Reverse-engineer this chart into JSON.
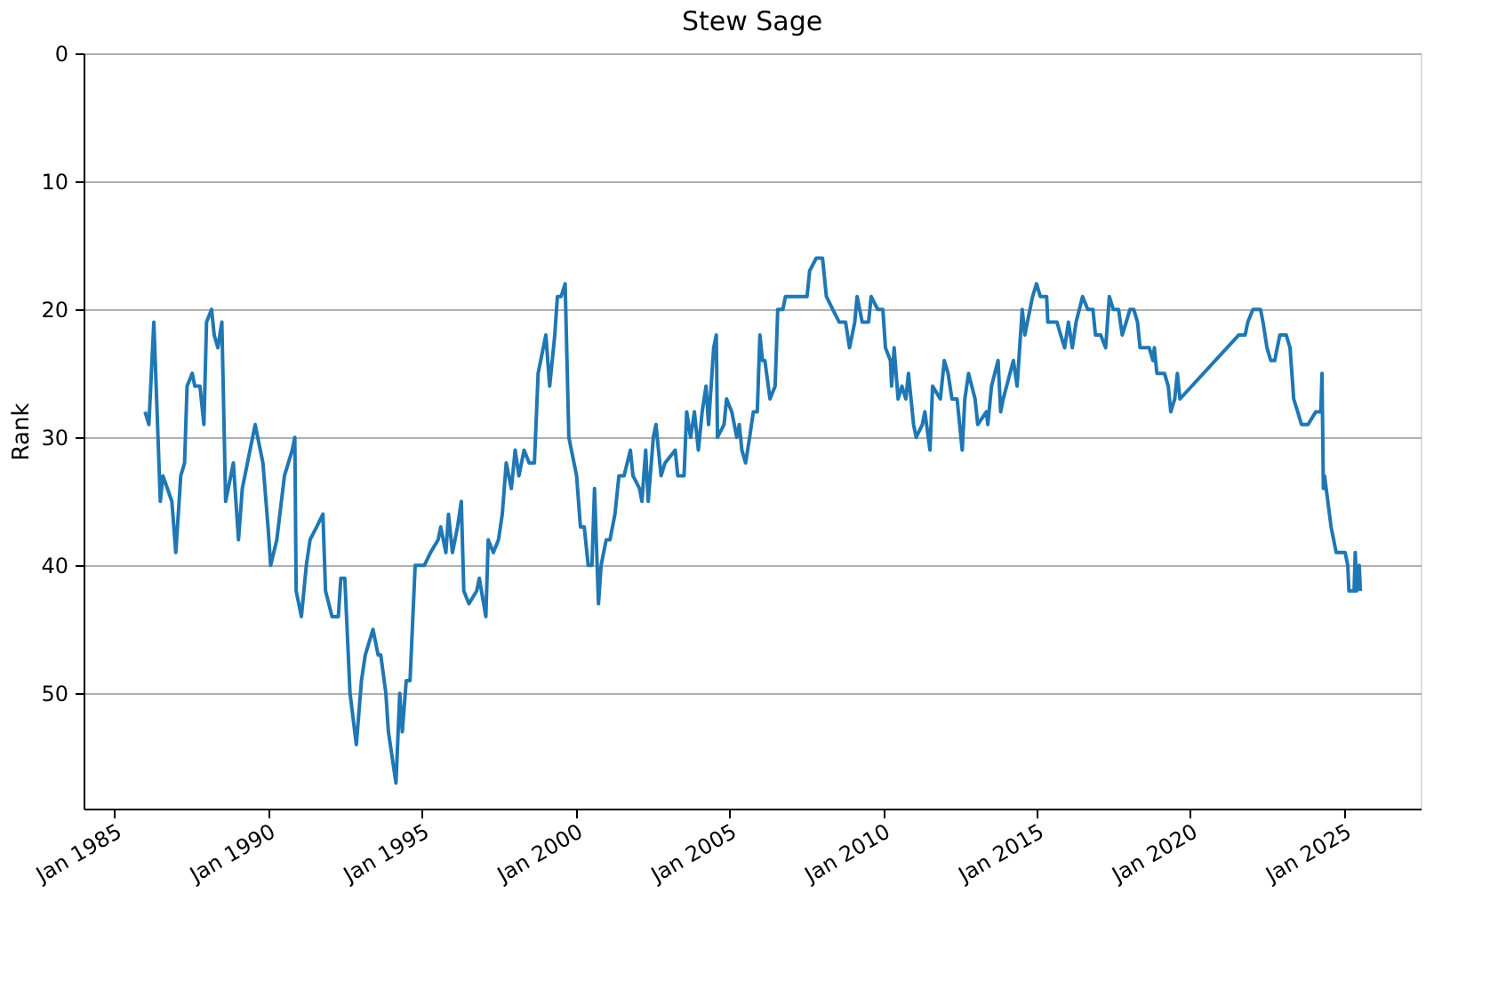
{
  "chart_data": {
    "type": "line",
    "title": "Stew Sage",
    "ylabel": "Rank",
    "x": [
      "1986-01-01",
      "1986-02-15",
      "1986-04-15",
      "1986-07-01",
      "1986-08-01",
      "1986-11-15",
      "1987-01-01",
      "1987-03-01",
      "1987-04-15",
      "1987-05-15",
      "1987-07-15",
      "1987-08-15",
      "1987-10-15",
      "1987-12-01",
      "1988-01-01",
      "1988-03-01",
      "1988-04-01",
      "1988-05-15",
      "1988-07-01",
      "1988-08-15",
      "1988-11-15",
      "1989-01-15",
      "1989-03-01",
      "1989-08-01",
      "1989-11-01",
      "1990-01-01",
      "1990-02-01",
      "1990-04-15",
      "1990-07-15",
      "1990-10-15",
      "1990-11-15",
      "1990-12-01",
      "1991-02-01",
      "1991-04-01",
      "1991-05-15",
      "1991-08-01",
      "1991-10-15",
      "1991-11-15",
      "1992-02-01",
      "1992-04-15",
      "1992-05-15",
      "1992-07-01",
      "1992-09-01",
      "1992-11-15",
      "1993-01-15",
      "1993-03-01",
      "1993-06-01",
      "1993-08-01",
      "1993-09-01",
      "1993-11-01",
      "1993-12-01",
      "1994-03-01",
      "1994-04-15",
      "1994-05-15",
      "1994-07-01",
      "1994-08-15",
      "1994-10-15",
      "1995-02-01",
      "1995-04-15",
      "1995-07-15",
      "1995-08-15",
      "1995-10-15",
      "1995-11-15",
      "1996-01-01",
      "1996-03-01",
      "1996-04-15",
      "1996-05-15",
      "1996-07-15",
      "1996-10-15",
      "1996-11-15",
      "1997-02-01",
      "1997-03-01",
      "1997-05-01",
      "1997-07-01",
      "1997-08-15",
      "1997-10-01",
      "1997-12-01",
      "1998-01-15",
      "1998-03-01",
      "1998-05-01",
      "1998-07-01",
      "1998-09-01",
      "1998-10-15",
      "1999-01-15",
      "1999-03-01",
      "1999-05-01",
      "1999-06-01",
      "1999-07-15",
      "1999-09-01",
      "1999-10-15",
      "2000-01-15",
      "2000-03-01",
      "2000-04-15",
      "2000-06-01",
      "2000-07-15",
      "2000-08-15",
      "2000-10-01",
      "2000-11-01",
      "2001-01-01",
      "2001-02-15",
      "2001-04-15",
      "2001-06-01",
      "2001-08-01",
      "2001-10-15",
      "2001-11-15",
      "2002-02-01",
      "2002-03-01",
      "2002-04-15",
      "2002-05-15",
      "2002-07-15",
      "2002-08-15",
      "2002-10-15",
      "2002-12-01",
      "2003-04-01",
      "2003-05-01",
      "2003-07-15",
      "2003-08-15",
      "2003-10-01",
      "2003-11-15",
      "2004-01-01",
      "2004-02-15",
      "2004-04-01",
      "2004-05-01",
      "2004-07-01",
      "2004-08-01",
      "2004-08-15",
      "2004-11-01",
      "2004-12-01",
      "2005-02-01",
      "2005-04-01",
      "2005-05-01",
      "2005-06-01",
      "2005-07-15",
      "2005-09-01",
      "2005-10-15",
      "2005-12-01",
      "2006-01-01",
      "2006-02-01",
      "2006-03-01",
      "2006-05-01",
      "2006-07-01",
      "2006-08-01",
      "2006-10-01",
      "2006-11-01",
      "2007-01-01",
      "2007-07-15",
      "2007-08-15",
      "2007-11-01",
      "2008-01-15",
      "2008-03-01",
      "2008-05-15",
      "2008-08-01",
      "2008-10-15",
      "2008-12-01",
      "2009-02-01",
      "2009-03-01",
      "2009-05-01",
      "2009-07-15",
      "2009-08-15",
      "2009-11-01",
      "2010-01-01",
      "2010-02-01",
      "2010-04-01",
      "2010-04-15",
      "2010-05-15",
      "2010-07-01",
      "2010-08-15",
      "2010-10-01",
      "2010-11-01",
      "2011-01-01",
      "2011-02-01",
      "2011-04-15",
      "2011-05-15",
      "2011-07-15",
      "2011-08-15",
      "2011-11-15",
      "2012-01-01",
      "2012-02-15",
      "2012-04-01",
      "2012-05-01",
      "2012-06-01",
      "2012-08-01",
      "2012-09-01",
      "2012-10-15",
      "2013-01-01",
      "2013-02-01",
      "2013-05-15",
      "2013-06-01",
      "2013-07-15",
      "2013-10-01",
      "2013-11-01",
      "2013-12-01",
      "2014-04-01",
      "2014-05-15",
      "2014-07-15",
      "2014-08-15",
      "2014-11-15",
      "2015-01-01",
      "2015-02-15",
      "2015-05-01",
      "2015-05-15",
      "2015-09-01",
      "2015-10-15",
      "2015-12-01",
      "2016-01-15",
      "2016-03-01",
      "2016-04-15",
      "2016-07-01",
      "2016-09-01",
      "2016-11-01",
      "2016-12-01",
      "2017-02-01",
      "2017-04-01",
      "2017-05-15",
      "2017-07-01",
      "2017-09-01",
      "2017-10-15",
      "2017-12-01",
      "2018-01-15",
      "2018-03-01",
      "2018-04-15",
      "2018-05-15",
      "2018-09-01",
      "2018-10-15",
      "2018-11-01",
      "2018-12-01",
      "2019-03-01",
      "2019-04-15",
      "2019-05-15",
      "2019-07-01",
      "2019-08-01",
      "2019-09-01",
      "2021-08-01",
      "2021-10-15",
      "2021-11-15",
      "2022-01-15",
      "2022-04-15",
      "2022-05-15",
      "2022-07-01",
      "2022-08-15",
      "2022-10-01",
      "2022-12-01",
      "2023-02-15",
      "2023-04-01",
      "2023-05-15",
      "2023-07-01",
      "2023-08-15",
      "2023-11-01",
      "2024-02-01",
      "2024-04-01",
      "2024-04-15",
      "2024-05-01",
      "2024-05-15",
      "2024-08-01",
      "2024-10-01",
      "2025-01-15",
      "2025-02-15",
      "2025-03-01",
      "2025-05-01",
      "2025-05-15",
      "2025-06-01",
      "2025-07-01",
      "2025-07-15"
    ],
    "series": [
      {
        "color": "#1f77b4",
        "values": [
          28,
          29,
          21,
          35,
          33,
          35,
          39,
          33,
          32,
          26,
          25,
          26,
          26,
          29,
          21,
          20,
          22,
          23,
          21,
          35,
          32,
          38,
          34,
          29,
          32,
          37,
          40,
          38,
          33,
          31,
          30,
          42,
          44,
          40,
          38,
          37,
          36,
          42,
          44,
          44,
          41,
          41,
          50,
          54,
          49,
          47,
          45,
          47,
          47,
          50,
          53,
          57,
          50,
          53,
          49,
          49,
          40,
          40,
          39,
          38,
          37,
          39,
          36,
          39,
          37,
          35,
          42,
          43,
          42,
          41,
          44,
          38,
          39,
          38,
          36,
          32,
          34,
          31,
          33,
          31,
          32,
          32,
          25,
          22,
          26,
          22,
          19,
          19,
          18,
          30,
          33,
          37,
          37,
          40,
          40,
          34,
          43,
          40,
          38,
          38,
          36,
          33,
          33,
          31,
          33,
          34,
          35,
          31,
          35,
          30,
          29,
          33,
          32,
          31,
          33,
          33,
          28,
          30,
          28,
          31,
          28,
          26,
          29,
          23,
          22,
          30,
          29,
          27,
          28,
          30,
          29,
          31,
          32,
          30,
          28,
          28,
          22,
          24,
          24,
          27,
          26,
          20,
          20,
          19,
          19,
          19,
          17,
          16,
          16,
          19,
          20,
          21,
          21,
          23,
          21,
          19,
          21,
          21,
          19,
          20,
          20,
          23,
          24,
          26,
          23,
          27,
          26,
          27,
          25,
          29,
          30,
          29,
          28,
          31,
          26,
          27,
          24,
          25,
          27,
          27,
          27,
          31,
          27,
          25,
          27,
          29,
          28,
          29,
          26,
          24,
          28,
          27,
          24,
          26,
          20,
          22,
          19,
          18,
          19,
          19,
          21,
          21,
          22,
          23,
          21,
          23,
          21,
          19,
          20,
          20,
          22,
          22,
          23,
          19,
          20,
          20,
          22,
          21,
          20,
          20,
          21,
          23,
          23,
          24,
          23,
          25,
          25,
          26,
          28,
          27,
          25,
          27,
          22,
          22,
          21,
          20,
          20,
          21,
          23,
          24,
          24,
          22,
          22,
          23,
          27,
          28,
          29,
          29,
          28,
          28,
          25,
          34,
          33,
          37,
          39,
          39,
          40,
          42,
          42,
          39,
          42,
          40,
          42
        ]
      }
    ],
    "xlim": [
      "1984-01-01",
      "2027-07-01"
    ],
    "xticks": [
      {
        "value": "1985-01-01",
        "label": "Jan 1985"
      },
      {
        "value": "1990-01-01",
        "label": "Jan 1990"
      },
      {
        "value": "1995-01-01",
        "label": "Jan 1995"
      },
      {
        "value": "2000-01-01",
        "label": "Jan 2000"
      },
      {
        "value": "2005-01-01",
        "label": "Jan 2005"
      },
      {
        "value": "2010-01-01",
        "label": "Jan 2010"
      },
      {
        "value": "2015-01-01",
        "label": "Jan 2015"
      },
      {
        "value": "2020-01-01",
        "label": "Jan 2020"
      },
      {
        "value": "2025-01-01",
        "label": "Jan 2025"
      }
    ],
    "ylim": [
      59,
      0
    ],
    "yticks": [
      0,
      10,
      20,
      30,
      40,
      50
    ],
    "grid": "y",
    "legend": false,
    "marker": "none",
    "line_style": "solid"
  }
}
